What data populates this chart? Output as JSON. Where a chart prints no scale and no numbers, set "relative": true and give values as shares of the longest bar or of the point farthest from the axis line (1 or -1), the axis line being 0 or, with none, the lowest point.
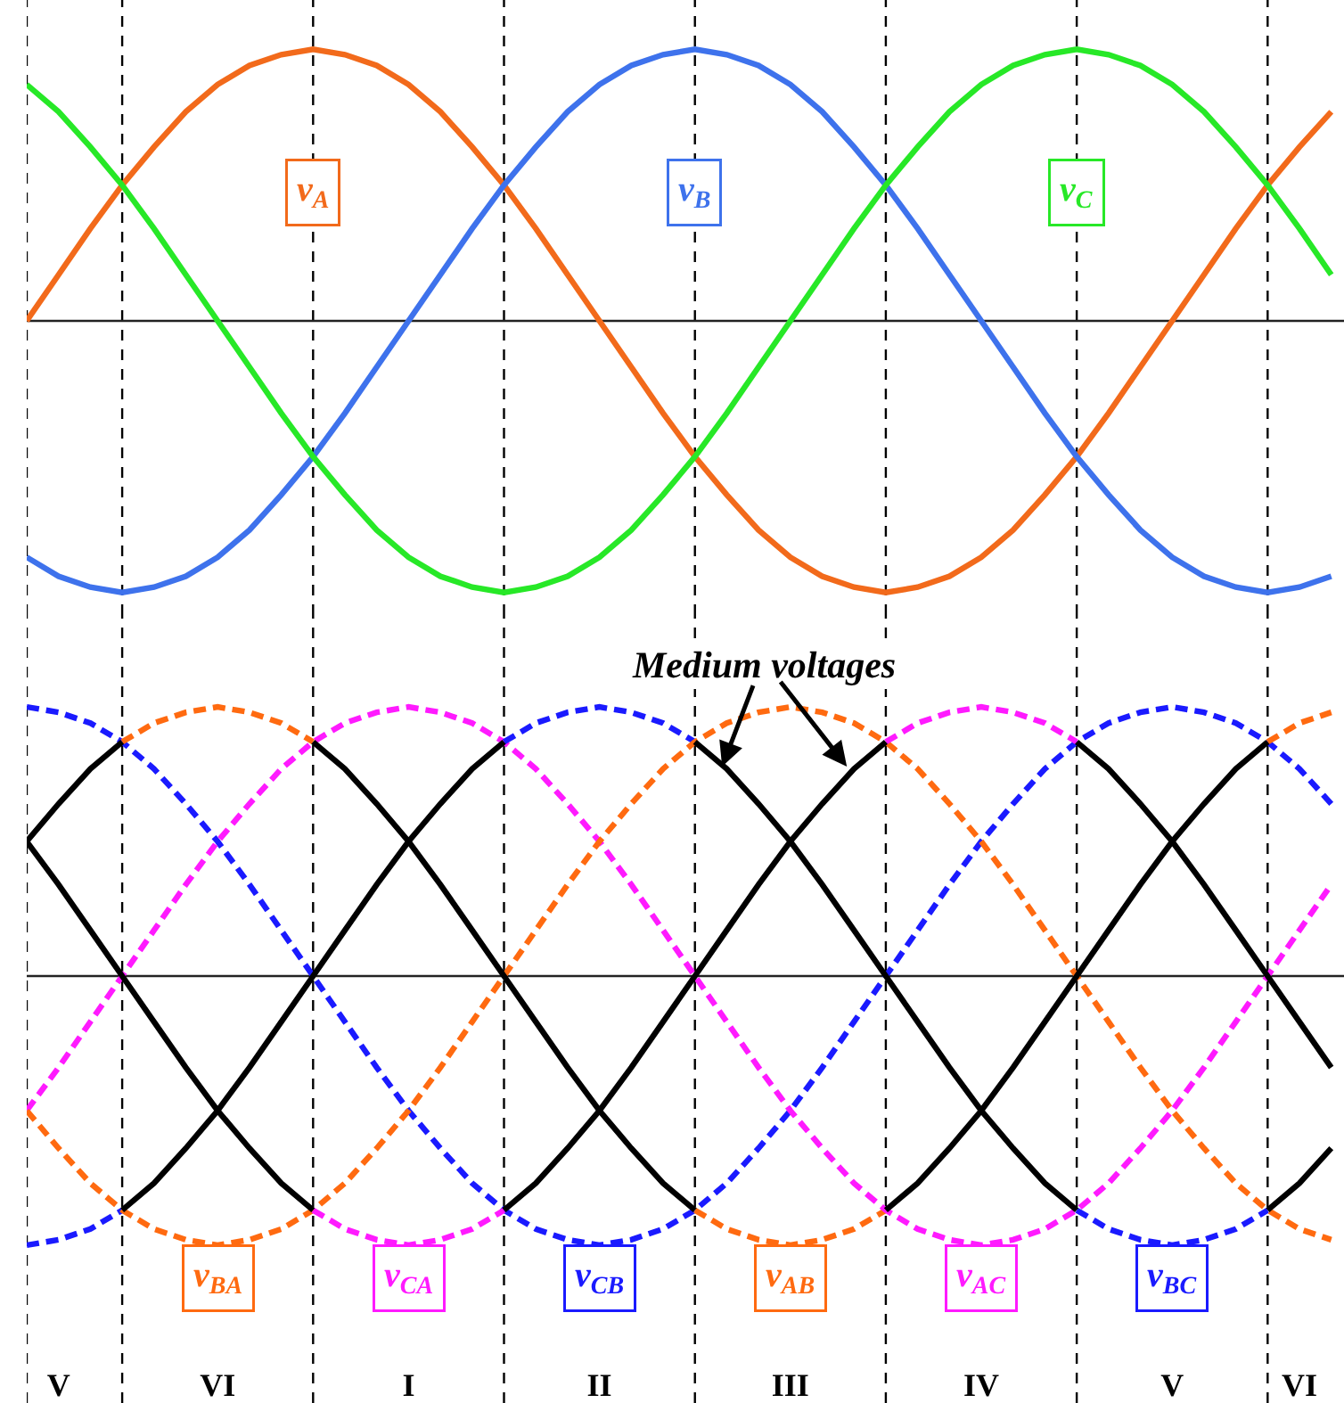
{
  "chart_data": [
    {
      "type": "line",
      "relative": true,
      "tick_labels": false,
      "legend": false,
      "marker": "none",
      "grid": "x",
      "categories": [
        null,
        null,
        null,
        null,
        null,
        null,
        null,
        null,
        null,
        null,
        null,
        null,
        null,
        null,
        null,
        null,
        null,
        null,
        null,
        null,
        null,
        null,
        null,
        null,
        null,
        null,
        null,
        null,
        null,
        null,
        null,
        null,
        null,
        null,
        null,
        null,
        null,
        null,
        null,
        null,
        null,
        null
      ],
      "series": [
        {
          "name": "v$_{A}$",
          "color": "#f26a1b",
          "line_style": "solid",
          "values": [
            0,
            0.17,
            0.34,
            0.5,
            0.64,
            0.77,
            0.87,
            0.94,
            0.98,
            1,
            0.98,
            0.94,
            0.87,
            0.77,
            0.64,
            0.5,
            0.34,
            0.17,
            0,
            -0.17,
            -0.34,
            -0.5,
            -0.64,
            -0.77,
            -0.87,
            -0.94,
            -0.98,
            -1,
            -0.98,
            -0.94,
            -0.87,
            -0.77,
            -0.64,
            -0.5,
            -0.34,
            -0.17,
            0,
            0.17,
            0.34,
            0.5,
            0.64,
            0.77
          ]
        },
        {
          "name": "v$_{B}$",
          "color": "#3e72ec",
          "line_style": "solid",
          "values": [
            -0.87,
            -0.94,
            -0.98,
            -1,
            -0.98,
            -0.94,
            -0.87,
            -0.77,
            -0.64,
            -0.5,
            -0.34,
            -0.17,
            0,
            0.17,
            0.34,
            0.5,
            0.64,
            0.77,
            0.87,
            0.94,
            0.98,
            1,
            0.98,
            0.94,
            0.87,
            0.77,
            0.64,
            0.5,
            0.34,
            0.17,
            0,
            -0.17,
            -0.34,
            -0.5,
            -0.64,
            -0.77,
            -0.87,
            -0.94,
            -0.98,
            -1,
            -0.98,
            -0.94
          ]
        },
        {
          "name": "v$_{C}$",
          "color": "#27e827",
          "line_style": "solid",
          "values": [
            0.87,
            0.77,
            0.64,
            0.5,
            0.34,
            0.17,
            0,
            -0.17,
            -0.34,
            -0.5,
            -0.64,
            -0.77,
            -0.87,
            -0.94,
            -0.98,
            -1,
            -0.98,
            -0.94,
            -0.87,
            -0.77,
            -0.64,
            -0.5,
            -0.34,
            -0.17,
            0,
            0.17,
            0.34,
            0.5,
            0.64,
            0.77,
            0.87,
            0.94,
            0.98,
            1,
            0.98,
            0.94,
            0.87,
            0.77,
            0.64,
            0.5,
            0.34,
            0.17
          ]
        }
      ]
    },
    {
      "type": "line",
      "relative": true,
      "tick_labels": "x",
      "legend": false,
      "marker": "none",
      "grid": "x",
      "categories": [
        null,
        "V",
        null,
        null,
        null,
        null,
        "VI",
        null,
        null,
        null,
        null,
        null,
        "I",
        null,
        null,
        null,
        null,
        null,
        "II",
        null,
        null,
        null,
        null,
        null,
        "III",
        null,
        null,
        null,
        null,
        null,
        "IV",
        null,
        null,
        null,
        null,
        null,
        "V",
        null,
        null,
        null,
        "VI",
        null
      ],
      "annotations": [
        "Medium voltages"
      ],
      "series": [
        {
          "name": "v$_{BC}$",
          "color": "#1a1aff",
          "line_style": "dashed",
          "values": [
            1,
            0.98,
            0.94,
            0.87,
            0.77,
            0.64,
            0.5,
            0.34,
            0.17,
            0,
            -0.17,
            -0.34,
            -0.5,
            -0.64,
            -0.77,
            -0.87,
            -0.94,
            -0.98,
            -1,
            -0.98,
            -0.94,
            -0.87,
            -0.77,
            -0.64,
            -0.5,
            -0.34,
            -0.17,
            0,
            0.17,
            0.34,
            0.5,
            0.64,
            0.77,
            0.87,
            0.94,
            0.98,
            1,
            0.98,
            0.94,
            0.87,
            0.77,
            0.64
          ]
        },
        {
          "name": "v$_{BA}$",
          "color": "#ff6a10",
          "line_style": "dashed",
          "values": [
            null,
            null,
            null,
            0.87,
            0.94,
            0.98,
            1,
            0.98,
            0.94,
            0.87,
            null,
            null,
            null,
            null,
            null,
            null,
            null,
            null,
            null,
            null,
            null,
            -0.87,
            -0.94,
            -0.98,
            -1,
            -0.98,
            -0.94,
            -0.87,
            null,
            null,
            null,
            null,
            null,
            null,
            null,
            null,
            null,
            null,
            null,
            0.87,
            0.94,
            0.98
          ]
        },
        {
          "name": "v$_{CA}$",
          "color": "#ff1aff",
          "line_style": "dashed",
          "values": [
            -0.5,
            -0.34,
            -0.17,
            0,
            0.17,
            0.34,
            0.5,
            0.64,
            0.77,
            0.87,
            0.94,
            0.98,
            1,
            0.98,
            0.94,
            0.87,
            0.77,
            0.64,
            0.5,
            0.34,
            0.17,
            0,
            -0.17,
            -0.34,
            -0.5,
            -0.64,
            -0.77,
            -0.87,
            -0.94,
            -0.98,
            -1,
            -0.98,
            -0.94,
            -0.87,
            -0.77,
            -0.64,
            -0.5,
            -0.34,
            -0.17,
            0,
            0.17,
            0.34
          ]
        },
        {
          "name": "v$_{CB}$",
          "color": "#1a1aff",
          "line_style": "dashed",
          "values": [
            -1,
            -0.98,
            -0.94,
            -0.87,
            null,
            null,
            null,
            null,
            null,
            null,
            null,
            null,
            null,
            null,
            null,
            0.87,
            0.94,
            0.98,
            1,
            0.98,
            0.94,
            0.87,
            null,
            null,
            null,
            null,
            null,
            null,
            null,
            null,
            null,
            null,
            null,
            -0.87,
            -0.94,
            -0.98,
            -1,
            -0.98,
            -0.94,
            -0.87,
            null,
            null
          ]
        },
        {
          "name": "v$_{AB}$",
          "color": "#ff6a10",
          "line_style": "dashed",
          "values": [
            -0.5,
            -0.64,
            -0.77,
            -0.87,
            -0.94,
            -0.98,
            -1,
            -0.98,
            -0.94,
            -0.87,
            -0.77,
            -0.64,
            -0.5,
            -0.34,
            -0.17,
            0,
            0.17,
            0.34,
            0.5,
            0.64,
            0.77,
            0.87,
            0.94,
            0.98,
            1,
            0.98,
            0.94,
            0.87,
            0.77,
            0.64,
            0.5,
            0.34,
            0.17,
            0,
            -0.17,
            -0.34,
            -0.5,
            -0.64,
            -0.77,
            -0.87,
            -0.94,
            -0.98
          ]
        },
        {
          "name": "v$_{AC}$",
          "color": "#ff1aff",
          "line_style": "dashed",
          "values": [
            null,
            null,
            null,
            null,
            null,
            null,
            null,
            null,
            null,
            -0.87,
            -0.94,
            -0.98,
            -1,
            -0.98,
            -0.94,
            -0.87,
            null,
            null,
            null,
            null,
            null,
            null,
            null,
            null,
            null,
            null,
            null,
            0.87,
            0.94,
            0.98,
            1,
            0.98,
            0.94,
            0.87,
            null,
            null,
            null,
            null,
            null,
            null,
            null,
            null
          ]
        },
        {
          "color": "#000000",
          "line_style": "solid",
          "values": [
            0.5,
            0.64,
            0.77,
            0.87,
            null,
            null,
            null,
            null,
            null,
            0.87,
            0.77,
            0.64,
            0.5,
            0.34,
            0.17,
            0,
            -0.17,
            -0.34,
            -0.5,
            -0.64,
            -0.77,
            -0.87,
            null,
            null,
            null,
            null,
            null,
            -0.87,
            -0.77,
            -0.64,
            -0.5,
            -0.34,
            -0.17,
            0,
            0.17,
            0.34,
            0.5,
            0.64,
            0.77,
            0.87,
            null,
            null
          ]
        },
        {
          "color": "#000000",
          "line_style": "solid",
          "values": [
            null,
            null,
            null,
            -0.87,
            -0.77,
            -0.64,
            -0.5,
            -0.34,
            -0.17,
            0,
            0.17,
            0.34,
            0.5,
            0.64,
            0.77,
            0.87,
            null,
            null,
            null,
            null,
            null,
            0.87,
            0.77,
            0.64,
            0.5,
            0.34,
            0.17,
            0,
            -0.17,
            -0.34,
            -0.5,
            -0.64,
            -0.77,
            -0.87,
            null,
            null,
            null,
            null,
            null,
            -0.87,
            -0.77,
            -0.64
          ]
        },
        {
          "color": "#000000",
          "line_style": "solid",
          "values": [
            0.5,
            0.34,
            0.17,
            0,
            -0.17,
            -0.34,
            -0.5,
            -0.64,
            -0.77,
            -0.87,
            null,
            null,
            null,
            null,
            null,
            -0.87,
            -0.77,
            -0.64,
            -0.5,
            -0.34,
            -0.17,
            0,
            0.17,
            0.34,
            0.5,
            0.64,
            0.77,
            0.87,
            null,
            null,
            null,
            null,
            null,
            0.87,
            0.77,
            0.64,
            0.5,
            0.34,
            0.17,
            0,
            -0.17,
            -0.34
          ]
        }
      ]
    }
  ]
}
